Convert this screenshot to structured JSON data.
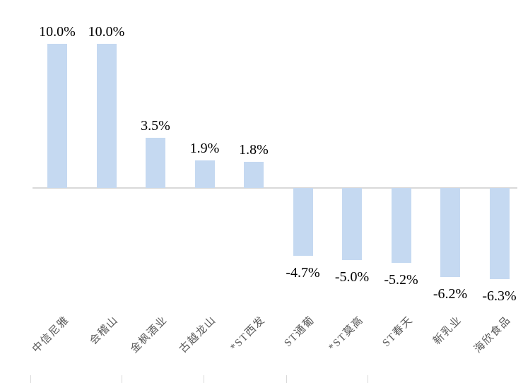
{
  "chart_data": {
    "type": "bar",
    "categories": [
      "中信尼雅",
      "会稽山",
      "金枫酒业",
      "古越龙山",
      "*ST西发",
      "ST通葡",
      "*ST莫高",
      "ST春天",
      "新乳业",
      "海欣食品"
    ],
    "values": [
      10.0,
      10.0,
      3.5,
      1.9,
      1.8,
      -4.7,
      -5.0,
      -5.2,
      -6.2,
      -6.3
    ],
    "value_labels": [
      "10.0%",
      "10.0%",
      "3.5%",
      "1.9%",
      "1.8%",
      "-4.7%",
      "-5.0%",
      "-5.2%",
      "-6.2%",
      "-6.3%"
    ],
    "title": "",
    "xlabel": "",
    "ylabel": "",
    "ylim": [
      -8,
      12
    ],
    "grid": false,
    "legend": "none",
    "bar_color": "#c5d9f1",
    "axis_color": "#d9d9d9",
    "value_label_color": "#000000",
    "category_label_color": "#595959"
  }
}
